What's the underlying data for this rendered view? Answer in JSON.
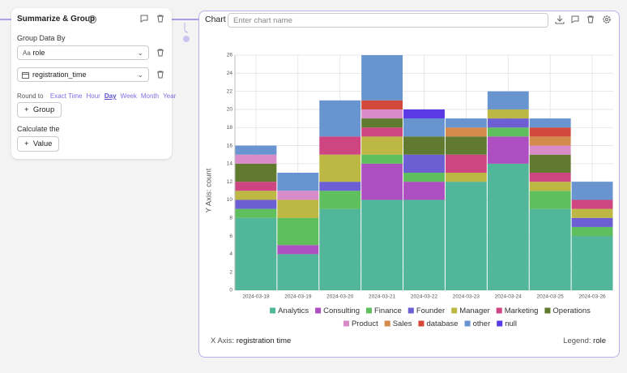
{
  "node": {
    "title": "Summarize & Group",
    "group_label": "Group Data By",
    "group_field_icon": "Aa",
    "group_field": "role",
    "time_field": "registration_time",
    "round_label": "Round to",
    "round_options": [
      "Exact Time",
      "Hour",
      "Day",
      "Week",
      "Month",
      "Year"
    ],
    "add_group": "Group",
    "calculate_label": "Calculate the",
    "add_value": "Value"
  },
  "chart_panel": {
    "title": "Chart",
    "name_placeholder": "Enter chart name",
    "x_axis_prefix": "X Axis:",
    "legend_prefix": "Legend:",
    "legend_field": "role"
  },
  "chart_data": {
    "type": "bar",
    "stacked": true,
    "ylabel": "Y Axis: count",
    "xlabel": "registration time",
    "categories": [
      "2024-03-18",
      "2024-03-19",
      "2024-03-20",
      "2024-03-21",
      "2024-03-22",
      "2024-03-23",
      "2024-03-24",
      "2024-03-25",
      "2024-03-26"
    ],
    "series": [
      {
        "name": "Analytics",
        "color": "#52b69a",
        "values": [
          8,
          4,
          9,
          10,
          10,
          12,
          14,
          9,
          6
        ]
      },
      {
        "name": "Consulting",
        "color": "#ad4fc0",
        "values": [
          0,
          1,
          0,
          4,
          2,
          0,
          3,
          0,
          0
        ]
      },
      {
        "name": "Finance",
        "color": "#5fbf5c",
        "values": [
          1,
          3,
          2,
          1,
          1,
          0,
          1,
          2,
          1
        ]
      },
      {
        "name": "Founder",
        "color": "#6c5fd3",
        "values": [
          1,
          0,
          1,
          0,
          2,
          0,
          1,
          0,
          1
        ]
      },
      {
        "name": "Manager",
        "color": "#bdb743",
        "values": [
          1,
          2,
          3,
          2,
          0,
          1,
          1,
          1,
          1
        ]
      },
      {
        "name": "Marketing",
        "color": "#cf4582",
        "values": [
          1,
          0,
          2,
          1,
          0,
          2,
          0,
          1,
          1
        ]
      },
      {
        "name": "Operations",
        "color": "#607a30",
        "values": [
          2,
          0,
          0,
          1,
          2,
          2,
          0,
          2,
          0
        ]
      },
      {
        "name": "Product",
        "color": "#d98ac9",
        "values": [
          1,
          1,
          0,
          1,
          0,
          0,
          0,
          1,
          0
        ]
      },
      {
        "name": "Sales",
        "color": "#d38a4a",
        "values": [
          0,
          0,
          0,
          0,
          0,
          1,
          0,
          1,
          0
        ]
      },
      {
        "name": "database",
        "color": "#d2483a",
        "values": [
          0,
          0,
          0,
          1,
          0,
          0,
          0,
          1,
          0
        ]
      },
      {
        "name": "other",
        "color": "#6895cf",
        "values": [
          1,
          2,
          4,
          5,
          2,
          1,
          2,
          1,
          2
        ]
      },
      {
        "name": "null",
        "color": "#5a3ae4",
        "values": [
          0,
          0,
          0,
          0,
          1,
          0,
          0,
          0,
          0
        ]
      }
    ],
    "ylim": [
      0,
      26
    ],
    "yticks": [
      0,
      2,
      4,
      6,
      8,
      10,
      12,
      14,
      16,
      18,
      20,
      22,
      24,
      26
    ],
    "grid": true
  }
}
